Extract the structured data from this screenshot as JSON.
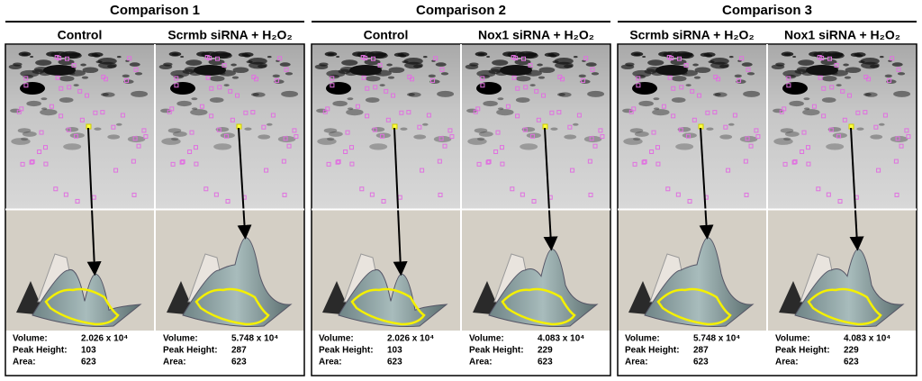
{
  "comparisons": [
    {
      "title": "Comparison 1",
      "lanes": [
        {
          "label": "Control",
          "volume": "2.026 x 10⁴",
          "peak_height": 103,
          "area": 623
        },
        {
          "label": "Scrmb siRNA + H₂O₂",
          "volume": "5.748 x 10⁴",
          "peak_height": 287,
          "area": 623
        }
      ]
    },
    {
      "title": "Comparison 2",
      "lanes": [
        {
          "label": "Control",
          "volume": "2.026 x 10⁴",
          "peak_height": 103,
          "area": 623
        },
        {
          "label": "Nox1 siRNA + H₂O₂",
          "volume": "4.083 x 10⁴",
          "peak_height": 229,
          "area": 623
        }
      ]
    },
    {
      "title": "Comparison 3",
      "lanes": [
        {
          "label": "Scrmb siRNA + H₂O₂",
          "volume": "5.748 x 10⁴",
          "peak_height": 287,
          "area": 623
        },
        {
          "label": "Nox1 siRNA + H₂O₂",
          "volume": "4.083 x 10⁴",
          "peak_height": 229,
          "area": 623
        }
      ]
    }
  ],
  "stat_labels": {
    "volume": "Volume:",
    "peak_height": "Peak Height:",
    "area": "Area:"
  }
}
